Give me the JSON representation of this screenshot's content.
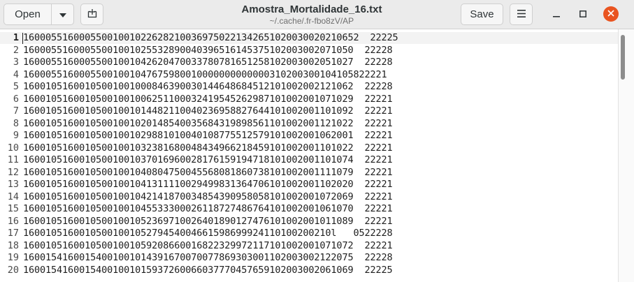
{
  "header": {
    "open_label": "Open",
    "title": "Amostra_Mortalidade_16.txt",
    "subtitle": "~/.cache/.fr-fbo8zV/AP",
    "save_label": "Save"
  },
  "icons": {
    "open_menu": "chevron-down-icon",
    "new_tab": "new-tab-icon",
    "menu": "hamburger-menu-icon",
    "minimize": "minimize-icon",
    "maximize": "maximize-icon",
    "close": "close-icon"
  },
  "colors": {
    "close_button": "#e95420",
    "header_bg": "#ebebeb"
  },
  "editor": {
    "lines": [
      {
        "n": "1",
        "text": "160005516000550010010226282100369750221342651020030020210652  22225"
      },
      {
        "n": "2",
        "text": "16000551600055001001025532890040396516145375102003002071050  22228"
      },
      {
        "n": "3",
        "text": "16000551600055001001042620470033780781651258102003002051027  22228"
      },
      {
        "n": "4",
        "text": "16000551600055001001047675980010000000000000310200300104105822221"
      },
      {
        "n": "5",
        "text": "16001051600105001001000846390030144648684512101002002121062  22228"
      },
      {
        "n": "6",
        "text": "16001051600105001001006251100032419545262987101002001071029  22221"
      },
      {
        "n": "7",
        "text": "16001051600105001001014482110040236958827644101002001101092  22221"
      },
      {
        "n": "8",
        "text": "16001051600105001001020148540035684319898561101002001121022  22221"
      },
      {
        "n": "9",
        "text": "16001051600105001001029881010040108775512579101002001062001  22221"
      },
      {
        "n": "10",
        "text": "16001051600105001001032381680048434966218459101002001101022  22221"
      },
      {
        "n": "11",
        "text": "16001051600105001001037016960028176159194718101002001101074  22221"
      },
      {
        "n": "12",
        "text": "16001051600105001001040804750045568081860738101002001111079  22221"
      },
      {
        "n": "13",
        "text": "16001051600105001001041311110029499831364706101002001102020  22221"
      },
      {
        "n": "14",
        "text": "16001051600105001001042141870034854390958058101002001072069  22221"
      },
      {
        "n": "15",
        "text": "16001051600105001001045533300026118727486764101002001061070  22221"
      },
      {
        "n": "16",
        "text": "16001051600105001001052369710026401890127476101002001011089  22221"
      },
      {
        "n": "17",
        "text": "1600105160010500100105279454004661598699924110100200210l   0522228"
      },
      {
        "n": "18",
        "text": "16001051600105001001059208660016822329972117101002001071072  22221"
      },
      {
        "n": "19",
        "text": "16001541600154001001014391670070077869303001102003002122075  22228"
      },
      {
        "n": "20",
        "text": "16001541600154001001015937260066037770457659102003002061069  22225"
      }
    ]
  }
}
